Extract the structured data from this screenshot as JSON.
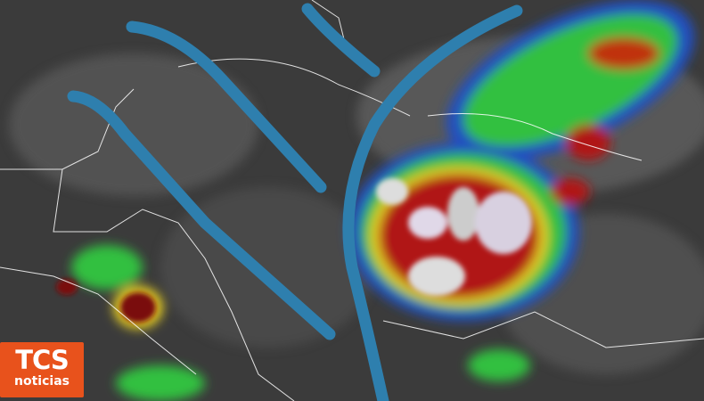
{
  "logo": {
    "brand": "TCS",
    "subtitle": "noticias",
    "color": "#e8521c"
  },
  "overlay": {
    "arrow_color": "#2e7fae"
  },
  "colors": {
    "cloud_red": "#b01818",
    "cloud_yellow": "#e8d020",
    "cloud_green": "#30c040",
    "cloud_blue": "#2050c0",
    "cloud_cyan": "#40c0e0",
    "coastline": "#ffffff"
  }
}
